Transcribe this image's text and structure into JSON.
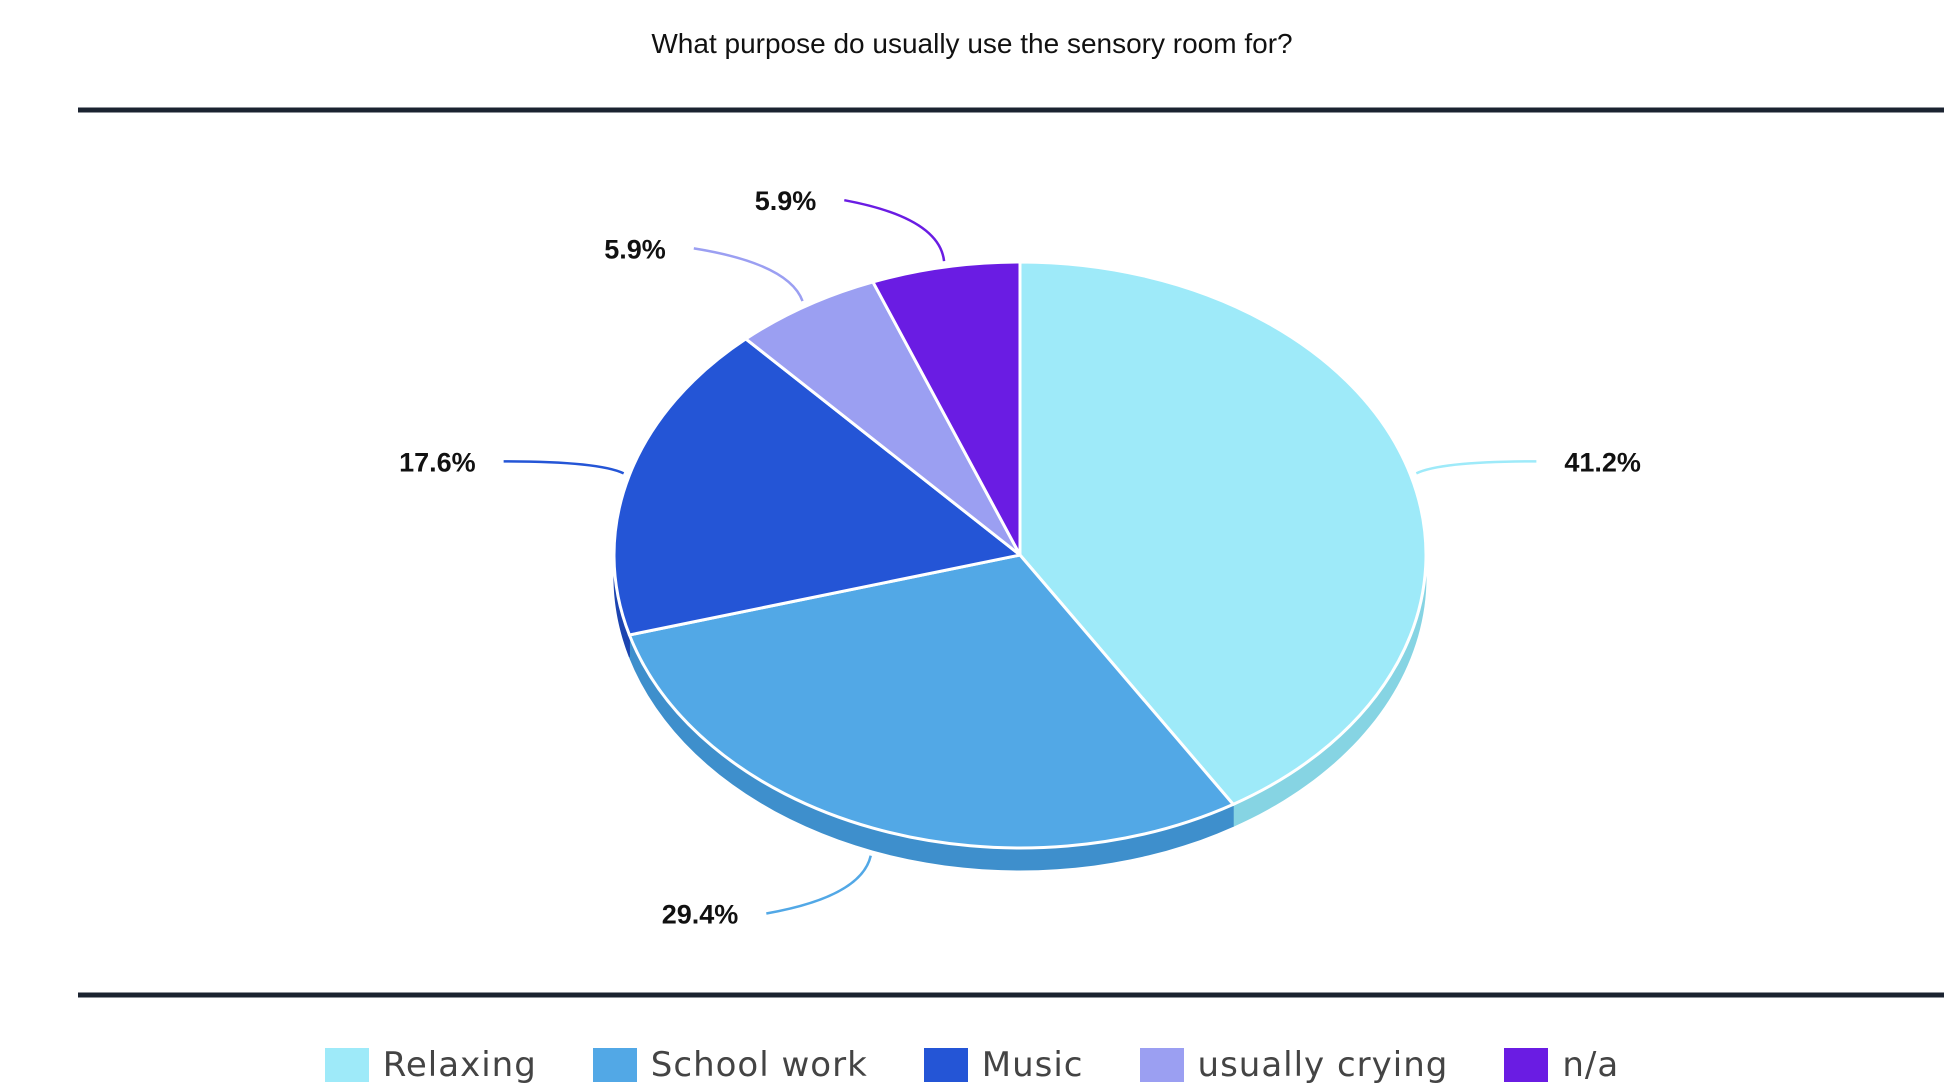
{
  "chart_data": {
    "type": "pie",
    "title": "What purpose do usually use the sensory room for?",
    "categories": [
      "Relaxing",
      "School work",
      "Music",
      "usually crying",
      "n/a"
    ],
    "values": [
      41.2,
      29.4,
      17.6,
      5.9,
      5.9
    ],
    "labels": [
      "41.2%",
      "29.4%",
      "17.6%",
      "5.9%",
      "5.9%"
    ],
    "colors": [
      "#9EEAF9",
      "#52A8E6",
      "#2455D6",
      "#9B9FF2",
      "#6A1CE3"
    ],
    "side_colors": [
      "#86D4E3",
      "#3E8FCC",
      "#1C44B0",
      "#7F83D4",
      "#5412C0"
    ],
    "legend_position": "bottom",
    "style": "3d"
  }
}
